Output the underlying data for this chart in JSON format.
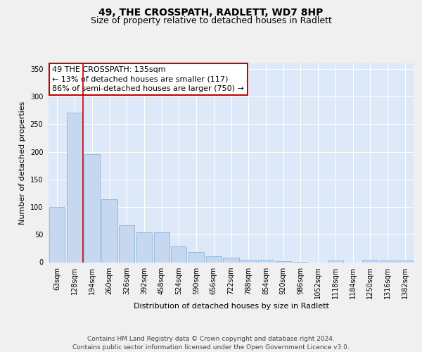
{
  "title_line1": "49, THE CROSSPATH, RADLETT, WD7 8HP",
  "title_line2": "Size of property relative to detached houses in Radlett",
  "xlabel": "Distribution of detached houses by size in Radlett",
  "ylabel": "Number of detached properties",
  "footer_line1": "Contains HM Land Registry data © Crown copyright and database right 2024.",
  "footer_line2": "Contains public sector information licensed under the Open Government Licence v3.0.",
  "annotation_line1": "49 THE CROSSPATH: 135sqm",
  "annotation_line2": "← 13% of detached houses are smaller (117)",
  "annotation_line3": "86% of semi-detached houses are larger (750) →",
  "bar_labels": [
    "63sqm",
    "128sqm",
    "194sqm",
    "260sqm",
    "326sqm",
    "392sqm",
    "458sqm",
    "524sqm",
    "590sqm",
    "656sqm",
    "722sqm",
    "788sqm",
    "854sqm",
    "920sqm",
    "986sqm",
    "1052sqm",
    "1118sqm",
    "1184sqm",
    "1250sqm",
    "1316sqm",
    "1382sqm"
  ],
  "bar_values": [
    100,
    271,
    195,
    114,
    67,
    54,
    54,
    29,
    19,
    11,
    8,
    4,
    4,
    2,
    1,
    0,
    3,
    0,
    4,
    3,
    3
  ],
  "bar_color": "#c5d8f0",
  "bar_edge_color": "#8db4d8",
  "vline_x": 1.5,
  "vline_color": "#cc0000",
  "ylim": [
    0,
    360
  ],
  "yticks": [
    0,
    50,
    100,
    150,
    200,
    250,
    300,
    350
  ],
  "bg_color": "#dde8f8",
  "plot_bg_color": "#dde8f8",
  "fig_bg_color": "#f0f0f0",
  "grid_color": "#ffffff",
  "annotation_box_color": "#ffffff",
  "annotation_box_edge": "#cc0000",
  "title_fontsize": 10,
  "subtitle_fontsize": 9,
  "axis_label_fontsize": 8,
  "tick_fontsize": 7,
  "annotation_fontsize": 8,
  "footer_fontsize": 6.5
}
